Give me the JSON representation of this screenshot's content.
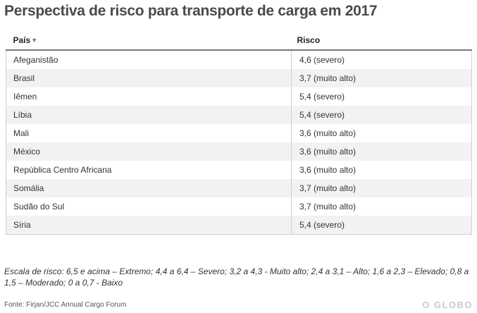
{
  "title": "Perspectiva de risco para transporte de carga em 2017",
  "table": {
    "headers": {
      "country": "País",
      "risk": "Risco"
    },
    "sort_icon": "sort-desc-icon",
    "rows": [
      {
        "country": "Afeganistão",
        "risk": "4,6 (severo)"
      },
      {
        "country": "Brasil",
        "risk": "3,7 (muito alto)"
      },
      {
        "country": "Iêmen",
        "risk": "5,4 (severo)"
      },
      {
        "country": "Líbia",
        "risk": "5,4 (severo)"
      },
      {
        "country": "Mali",
        "risk": "3,6 (muito alto)"
      },
      {
        "country": "México",
        "risk": "3,6 (muito alto)"
      },
      {
        "country": "República Centro Africana",
        "risk": "3,6 (muito alto)"
      },
      {
        "country": "Somália",
        "risk": "3,7 (muito alto)"
      },
      {
        "country": "Sudão do Sul",
        "risk": "3,7 (muito alto)"
      },
      {
        "country": "Síria",
        "risk": "5,4 (severo)"
      }
    ]
  },
  "scale_note": "Escala de risco: 6,5 e acima – Extremo; 4,4 a 6,4 – Severo; 3,2 a 4,3 - Muito alto; 2,4 a 3,1 – Alto; 1,6 a 2,3 – Elevado; 0,8 a 1,5 – Moderado; 0 a 0,7 - Baixo",
  "source": "Fonte: Firjan/JCC Annual Cargo Forum",
  "brand": "O GLOBO",
  "colors": {
    "title": "#4a4a4a",
    "row_alt": "#f2f2f2",
    "brand": "#c9c9c9"
  }
}
